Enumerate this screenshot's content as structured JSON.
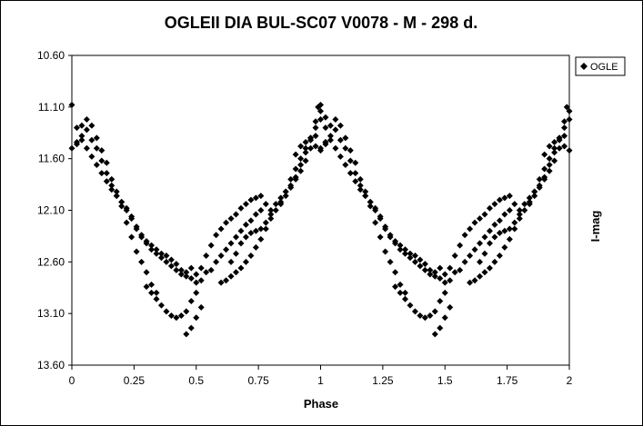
{
  "chart_data": {
    "type": "scatter",
    "title": "OGLEII DIA BUL-SC07  V0078 - M - 298 d.",
    "xlabel": "Phase",
    "ylabel": "I-mag",
    "xlim": [
      0,
      2
    ],
    "ylim": [
      10.6,
      13.6
    ],
    "y_inverted": true,
    "xticks": [
      "0",
      "0.25",
      "0.5",
      "0.75",
      "1",
      "1.25",
      "1.5",
      "1.75",
      "2"
    ],
    "yticks": [
      "10.60",
      "11.10",
      "11.60",
      "12.10",
      "12.60",
      "13.10",
      "13.60"
    ],
    "grid": false,
    "legend_position": "top-right",
    "marker": "diamond",
    "marker_color": "#000000",
    "series": [
      {
        "name": "OGLE",
        "points": [
          [
            0.0,
            11.08
          ],
          [
            0.02,
            11.3
          ],
          [
            0.04,
            11.28
          ],
          [
            0.06,
            11.32
          ],
          [
            0.08,
            11.42
          ],
          [
            0.1,
            11.5
          ],
          [
            0.12,
            11.62
          ],
          [
            0.14,
            11.74
          ],
          [
            0.16,
            11.86
          ],
          [
            0.18,
            11.96
          ],
          [
            0.2,
            12.02
          ],
          [
            0.22,
            12.1
          ],
          [
            0.24,
            12.18
          ],
          [
            0.26,
            12.28
          ],
          [
            0.28,
            12.36
          ],
          [
            0.3,
            12.42
          ],
          [
            0.32,
            12.48
          ],
          [
            0.34,
            12.52
          ],
          [
            0.36,
            12.56
          ],
          [
            0.38,
            12.6
          ],
          [
            0.4,
            12.64
          ],
          [
            0.42,
            12.68
          ],
          [
            0.44,
            12.72
          ],
          [
            0.46,
            12.7
          ],
          [
            0.48,
            12.66
          ],
          [
            0.0,
            11.5
          ],
          [
            0.02,
            11.44
          ],
          [
            0.04,
            11.42
          ],
          [
            0.06,
            11.5
          ],
          [
            0.08,
            11.58
          ],
          [
            0.1,
            11.66
          ],
          [
            0.12,
            11.74
          ],
          [
            0.14,
            11.82
          ],
          [
            0.16,
            11.9
          ],
          [
            0.18,
            11.96
          ],
          [
            0.2,
            12.02
          ],
          [
            0.22,
            12.08
          ],
          [
            0.24,
            12.16
          ],
          [
            0.26,
            12.26
          ],
          [
            0.28,
            12.34
          ],
          [
            0.3,
            12.4
          ],
          [
            0.32,
            12.44
          ],
          [
            0.34,
            12.48
          ],
          [
            0.36,
            12.52
          ],
          [
            0.38,
            12.54
          ],
          [
            0.4,
            12.58
          ],
          [
            0.42,
            12.62
          ],
          [
            0.44,
            12.68
          ],
          [
            0.46,
            12.74
          ],
          [
            0.48,
            12.76
          ],
          [
            0.5,
            12.8
          ],
          [
            0.02,
            11.46
          ],
          [
            0.04,
            11.38
          ],
          [
            0.06,
            11.22
          ],
          [
            0.08,
            11.28
          ],
          [
            0.1,
            11.4
          ],
          [
            0.12,
            11.52
          ],
          [
            0.14,
            11.64
          ],
          [
            0.16,
            11.8
          ],
          [
            0.18,
            11.92
          ],
          [
            0.2,
            12.06
          ],
          [
            0.22,
            12.22
          ],
          [
            0.24,
            12.36
          ],
          [
            0.26,
            12.5
          ],
          [
            0.28,
            12.6
          ],
          [
            0.3,
            12.7
          ],
          [
            0.32,
            12.82
          ],
          [
            0.34,
            12.9
          ],
          [
            0.3,
            12.84
          ],
          [
            0.32,
            12.9
          ],
          [
            0.34,
            12.96
          ],
          [
            0.36,
            13.02
          ],
          [
            0.38,
            13.08
          ],
          [
            0.4,
            13.12
          ],
          [
            0.42,
            13.14
          ],
          [
            0.44,
            13.12
          ],
          [
            0.46,
            13.08
          ],
          [
            0.48,
            12.98
          ],
          [
            0.5,
            12.9
          ],
          [
            0.52,
            12.78
          ],
          [
            0.54,
            12.7
          ],
          [
            0.46,
            13.3
          ],
          [
            0.48,
            13.24
          ],
          [
            0.5,
            13.14
          ],
          [
            0.52,
            13.04
          ],
          [
            0.5,
            12.72
          ],
          [
            0.52,
            12.66
          ],
          [
            0.54,
            12.54
          ],
          [
            0.56,
            12.44
          ],
          [
            0.58,
            12.34
          ],
          [
            0.6,
            12.28
          ],
          [
            0.62,
            12.22
          ],
          [
            0.64,
            12.18
          ],
          [
            0.66,
            12.14
          ],
          [
            0.68,
            12.08
          ],
          [
            0.7,
            12.04
          ],
          [
            0.72,
            12.0
          ],
          [
            0.74,
            11.98
          ],
          [
            0.76,
            11.96
          ],
          [
            0.56,
            12.68
          ],
          [
            0.58,
            12.6
          ],
          [
            0.6,
            12.54
          ],
          [
            0.62,
            12.48
          ],
          [
            0.64,
            12.42
          ],
          [
            0.66,
            12.36
          ],
          [
            0.68,
            12.3
          ],
          [
            0.7,
            12.24
          ],
          [
            0.72,
            12.2
          ],
          [
            0.74,
            12.14
          ],
          [
            0.76,
            12.1
          ],
          [
            0.78,
            12.04
          ],
          [
            0.6,
            12.8
          ],
          [
            0.62,
            12.78
          ],
          [
            0.64,
            12.74
          ],
          [
            0.66,
            12.7
          ],
          [
            0.68,
            12.66
          ],
          [
            0.7,
            12.6
          ],
          [
            0.72,
            12.54
          ],
          [
            0.74,
            12.46
          ],
          [
            0.76,
            12.38
          ],
          [
            0.78,
            12.28
          ],
          [
            0.8,
            12.18
          ],
          [
            0.64,
            12.6
          ],
          [
            0.66,
            12.52
          ],
          [
            0.68,
            12.42
          ],
          [
            0.7,
            12.36
          ],
          [
            0.72,
            12.32
          ],
          [
            0.74,
            12.3
          ],
          [
            0.76,
            12.28
          ],
          [
            0.78,
            12.22
          ],
          [
            0.8,
            12.1
          ],
          [
            0.82,
            12.04
          ],
          [
            0.84,
            11.98
          ],
          [
            0.86,
            11.92
          ],
          [
            0.88,
            11.86
          ],
          [
            0.9,
            11.8
          ],
          [
            0.92,
            11.72
          ],
          [
            0.94,
            11.62
          ],
          [
            0.96,
            11.5
          ],
          [
            0.98,
            11.38
          ],
          [
            0.8,
            12.14
          ],
          [
            0.82,
            12.1
          ],
          [
            0.84,
            12.04
          ],
          [
            0.86,
            11.96
          ],
          [
            0.88,
            11.88
          ],
          [
            0.9,
            11.78
          ],
          [
            0.92,
            11.66
          ],
          [
            0.94,
            11.54
          ],
          [
            0.96,
            11.4
          ],
          [
            0.98,
            11.24
          ],
          [
            0.99,
            11.1
          ],
          [
            1.0,
            11.14
          ],
          [
            0.84,
            12.02
          ],
          [
            0.86,
            11.92
          ],
          [
            0.88,
            11.8
          ],
          [
            0.9,
            11.7
          ],
          [
            0.92,
            11.6
          ],
          [
            0.94,
            11.5
          ],
          [
            0.96,
            11.4
          ],
          [
            0.98,
            11.3
          ],
          [
            1.0,
            11.22
          ],
          [
            1.02,
            11.2
          ],
          [
            0.9,
            11.56
          ],
          [
            0.92,
            11.48
          ],
          [
            0.94,
            11.44
          ],
          [
            0.96,
            11.42
          ],
          [
            0.98,
            11.48
          ],
          [
            1.0,
            11.52
          ],
          [
            1.02,
            11.44
          ]
        ]
      }
    ],
    "phase_repeat": 1.0
  }
}
